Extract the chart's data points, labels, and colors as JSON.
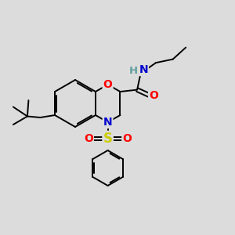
{
  "bg_color": "#dcdcdc",
  "atom_colors": {
    "O": "#ff0000",
    "N": "#0000cd",
    "S": "#cccc00",
    "C": "#000000",
    "H": "#5f9ea0"
  },
  "bond_color": "#000000",
  "figsize": [
    3.0,
    3.0
  ],
  "dpi": 100,
  "lw": 1.4
}
